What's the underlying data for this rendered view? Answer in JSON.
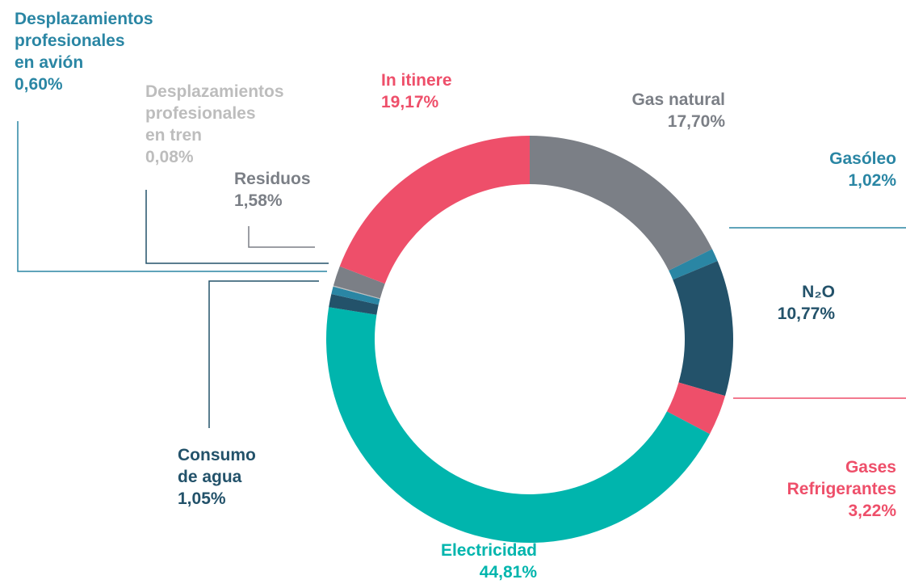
{
  "chart_data": {
    "type": "donut",
    "categories": [
      "Gas natural",
      "Gasóleo",
      "N₂O",
      "Gases Refrigerantes",
      "Electricidad",
      "Consumo de agua",
      "Desplazamientos profesionales en avión",
      "Desplazamientos profesionales en tren",
      "Residuos",
      "In itinere"
    ],
    "values": [
      17.7,
      1.02,
      10.77,
      3.22,
      44.81,
      1.05,
      0.6,
      0.08,
      1.58,
      19.17
    ],
    "value_labels": [
      "17,70%",
      "1,02%",
      "10,77%",
      "3,22%",
      "44,81%",
      "1,05%",
      "0,60%",
      "0,08%",
      "1,58%",
      "19,17%"
    ],
    "colors": [
      "#7b7f86",
      "#2a86a4",
      "#23526a",
      "#ee4f6a",
      "#00b5ad",
      "#23526a",
      "#2a86a4",
      "#bdbdbd",
      "#7b7f86",
      "#ee4f6a"
    ]
  }
}
